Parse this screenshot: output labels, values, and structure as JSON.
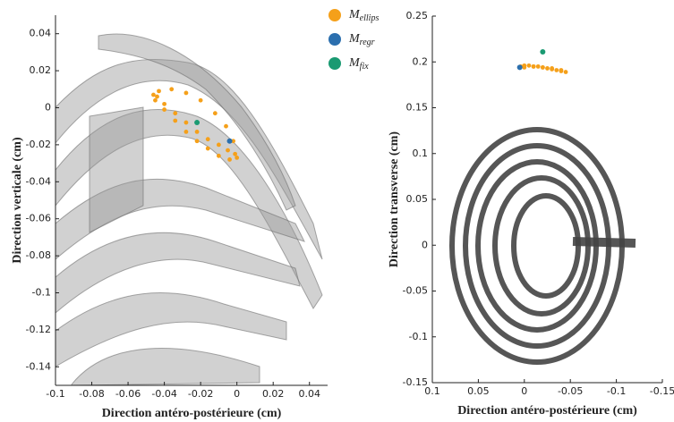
{
  "chart_data": [
    {
      "type": "scatter",
      "xlabel": "Direction antéro-postérieure (cm)",
      "ylabel": "Direction verticale (cm)",
      "xlim": [
        -0.1,
        0.05
      ],
      "ylim": [
        -0.15,
        0.05
      ],
      "xticks": [
        -0.1,
        -0.08,
        -0.06,
        -0.04,
        -0.02,
        0,
        0.02,
        0.04
      ],
      "yticks": [
        0.04,
        0.02,
        0,
        -0.02,
        -0.04,
        -0.06,
        -0.08,
        -0.1,
        -0.12,
        -0.14
      ],
      "legend": "top-right",
      "series": [
        {
          "name": "M",
          "subscript": "ellips",
          "color": "#f5a01a",
          "x": [
            -0.044,
            -0.04,
            -0.034,
            -0.028,
            -0.022,
            -0.016,
            -0.01,
            -0.005,
            -0.001,
            0.0,
            -0.004,
            -0.01,
            -0.016,
            -0.022,
            -0.028,
            -0.034,
            -0.04,
            -0.045,
            -0.046,
            -0.043,
            -0.036,
            -0.028,
            -0.02,
            -0.012,
            -0.006,
            -0.002
          ],
          "y": [
            0.006,
            0.002,
            -0.003,
            -0.008,
            -0.013,
            -0.017,
            -0.02,
            -0.023,
            -0.025,
            -0.027,
            -0.028,
            -0.026,
            -0.022,
            -0.018,
            -0.013,
            -0.007,
            -0.001,
            0.004,
            0.007,
            0.009,
            0.01,
            0.008,
            0.004,
            -0.003,
            -0.01,
            -0.018
          ]
        },
        {
          "name": "M",
          "subscript": "regr",
          "color": "#2b6fae",
          "x": [
            -0.004
          ],
          "y": [
            -0.018
          ]
        },
        {
          "name": "M",
          "subscript": "fix",
          "color": "#1a9a72",
          "x": [
            -0.022
          ],
          "y": [
            -0.008
          ]
        }
      ]
    },
    {
      "type": "scatter",
      "xlabel": "Direction antéro-postérieure (cm)",
      "ylabel": "Direction transverse (cm)",
      "xlim": [
        0.1,
        -0.15
      ],
      "ylim": [
        -0.15,
        0.25
      ],
      "xticks": [
        0.1,
        0.05,
        0,
        -0.05,
        -0.1,
        -0.15
      ],
      "yticks": [
        0.25,
        0.2,
        0.15,
        0.1,
        0.05,
        0,
        -0.05,
        -0.1,
        -0.15
      ],
      "series": [
        {
          "name": "M",
          "subscript": "ellips",
          "color": "#f5a01a",
          "x": [
            0.004,
            0.0,
            -0.005,
            -0.01,
            -0.015,
            -0.02,
            -0.025,
            -0.03,
            -0.035,
            -0.04,
            -0.045,
            -0.04,
            -0.03,
            -0.02,
            -0.01,
            0.0
          ],
          "y": [
            0.195,
            0.196,
            0.196,
            0.195,
            0.195,
            0.194,
            0.193,
            0.192,
            0.191,
            0.19,
            0.189,
            0.191,
            0.193,
            0.194,
            0.195,
            0.194
          ]
        },
        {
          "name": "M",
          "subscript": "regr",
          "color": "#2b6fae",
          "x": [
            0.005
          ],
          "y": [
            0.194
          ]
        },
        {
          "name": "M",
          "subscript": "fix",
          "color": "#1a9a72",
          "x": [
            -0.02
          ],
          "y": [
            0.211
          ]
        }
      ]
    }
  ]
}
